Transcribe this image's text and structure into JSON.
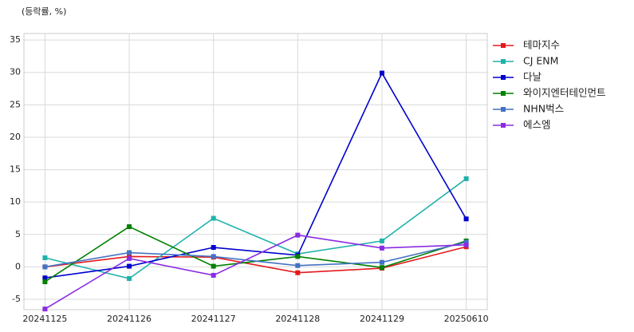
{
  "chart_data": {
    "type": "line",
    "y_label": "(등락률, %)",
    "categories": [
      "20241125",
      "20241126",
      "20241127",
      "20241128",
      "20241129",
      "20250610"
    ],
    "series": [
      {
        "name": "테마지수",
        "color": "#e31a1c",
        "values": [
          0,
          1.6,
          1.5,
          -0.9,
          -0.2,
          3.1
        ]
      },
      {
        "name": "CJ ENM",
        "color": "#20b2aa",
        "values": [
          1.4,
          -1.8,
          7.5,
          2.0,
          4.0,
          13.6
        ]
      },
      {
        "name": "다날",
        "color": "#0000cd",
        "values": [
          -1.7,
          0.1,
          3.0,
          1.8,
          29.9,
          7.4
        ]
      },
      {
        "name": "와이지엔터테인먼트",
        "color": "#008000",
        "values": [
          -2.3,
          6.2,
          0.1,
          1.6,
          -0.1,
          4.0
        ]
      },
      {
        "name": "NHN벅스",
        "color": "#4472c4",
        "values": [
          0,
          2.2,
          1.6,
          0.2,
          0.7,
          3.8
        ]
      },
      {
        "name": "에스엠",
        "color": "#8a2be2",
        "values": [
          -6.5,
          1.3,
          -1.3,
          4.9,
          2.9,
          3.4
        ]
      }
    ],
    "ylim": [
      -6.6,
      36
    ],
    "yticks": [
      -5,
      0,
      5,
      10,
      15,
      20,
      25,
      30,
      35
    ],
    "grid": true
  }
}
